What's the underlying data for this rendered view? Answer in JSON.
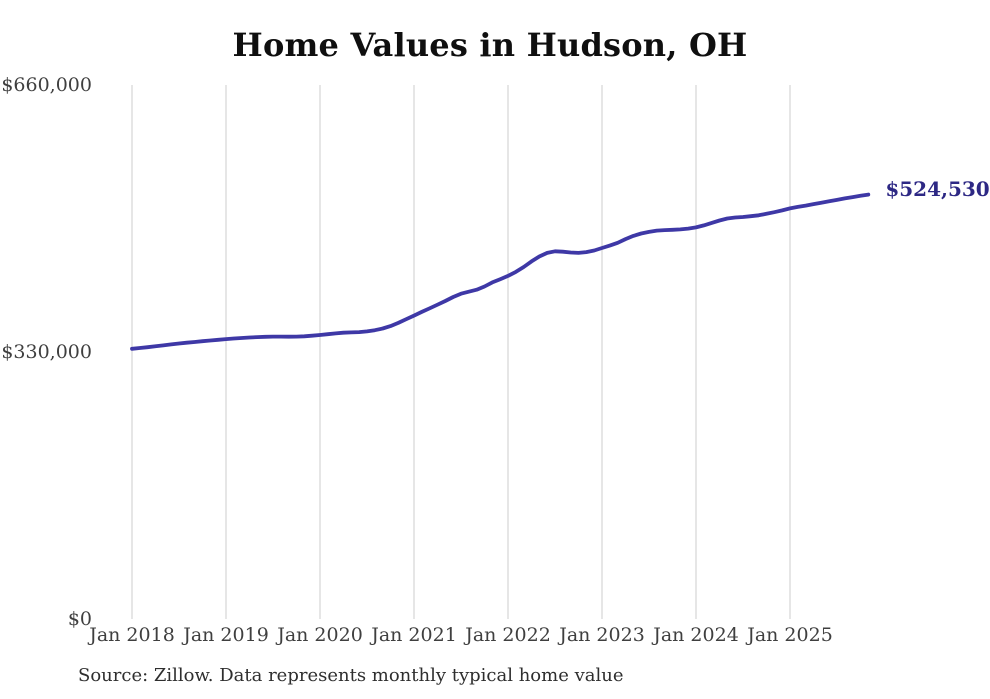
{
  "page": {
    "title": "Home Values in Hudson, OH"
  },
  "chart_data": {
    "type": "line",
    "title": "Home Values in Hudson, OH",
    "xlabel": "",
    "ylabel": "",
    "ylim": [
      0,
      660000
    ],
    "grid": "vertical-only",
    "legend": "none",
    "grid_color": "#cdcdcd",
    "line_color": "#3e38a6",
    "end_label": "$524,530",
    "end_label_color": "#2d2884",
    "x_tick_labels": [
      "Jan 2018",
      "Jan 2019",
      "Jan 2020",
      "Jan 2021",
      "Jan 2022",
      "Jan 2023",
      "Jan 2024",
      "Jan 2025"
    ],
    "y_ticks": [
      {
        "label": "$0",
        "value": 0
      },
      {
        "label": "$330,000",
        "value": 330000
      },
      {
        "label": "$660,000",
        "value": 660000
      }
    ],
    "series": [
      {
        "name": "Monthly typical home value",
        "start_month": "2018-01",
        "end_month": "2025-11",
        "points_per_year": 12,
        "values": [
          334000,
          334900,
          335900,
          337000,
          338200,
          339400,
          340500,
          341500,
          342400,
          343300,
          344200,
          345100,
          346000,
          346700,
          347300,
          347900,
          348400,
          348800,
          349000,
          349000,
          348900,
          349000,
          349400,
          350100,
          351000,
          352000,
          353000,
          353800,
          354200,
          354600,
          355500,
          357000,
          359000,
          362000,
          366000,
          370500,
          375000,
          379500,
          384000,
          388500,
          393000,
          398000,
          402000,
          404500,
          407000,
          411000,
          416000,
          420000,
          424000,
          429000,
          435000,
          442000,
          448000,
          452500,
          454500,
          454000,
          453000,
          452500,
          453500,
          455500,
          458500,
          461500,
          465000,
          469500,
          473500,
          476500,
          478500,
          480000,
          480700,
          481000,
          481500,
          482500,
          484000,
          486500,
          489500,
          492500,
          495000,
          496200,
          496800,
          497800,
          499000,
          500800,
          502800,
          505000,
          507500,
          509300,
          511000,
          512800,
          514500,
          516200,
          518000,
          519800,
          521400,
          523000,
          524530
        ],
        "latest_value": 524530
      }
    ]
  },
  "footer": {
    "source_text": "Source: Zillow. Data represents monthly typical home value"
  }
}
